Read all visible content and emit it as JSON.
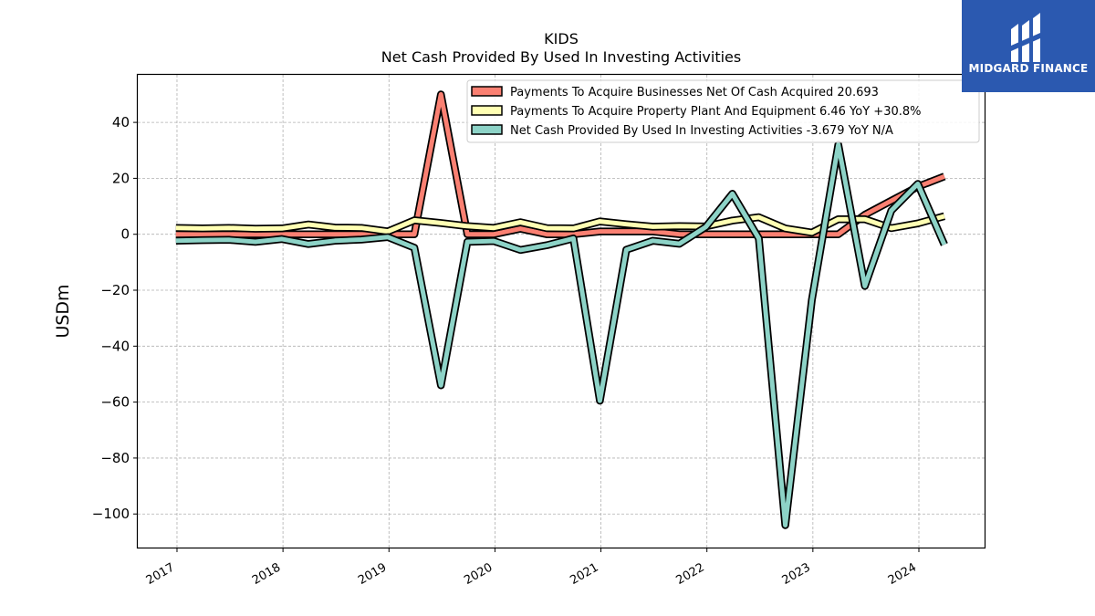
{
  "chart_data": {
    "type": "line",
    "title": "KIDS",
    "subtitle": "Net Cash Provided By Used In Investing Activities",
    "ylabel": "USDm",
    "xlabel": "",
    "ylim": [
      -112,
      57
    ],
    "xlim": [
      2016.63,
      2024.62
    ],
    "yticks": [
      40,
      20,
      0,
      -20,
      -40,
      -60,
      -80,
      -100
    ],
    "ytick_labels": [
      "40",
      "20",
      "0",
      "−20",
      "−40",
      "−60",
      "−80",
      "−100"
    ],
    "xticks": [
      2017,
      2018,
      2019,
      2020,
      2021,
      2022,
      2023,
      2024
    ],
    "xtick_labels": [
      "2017",
      "2018",
      "2019",
      "2020",
      "2021",
      "2022",
      "2023",
      "2024"
    ],
    "grid": true,
    "legend_position": "top-right",
    "x": [
      2016.99,
      2017.24,
      2017.49,
      2017.74,
      2017.99,
      2018.24,
      2018.49,
      2018.74,
      2018.99,
      2019.24,
      2019.49,
      2019.74,
      2019.99,
      2020.24,
      2020.49,
      2020.74,
      2020.99,
      2021.24,
      2021.49,
      2021.74,
      2021.99,
      2022.24,
      2022.49,
      2022.74,
      2022.99,
      2023.24,
      2023.49,
      2023.74,
      2023.99,
      2024.24
    ],
    "series": [
      {
        "name": "Payments To Acquire Businesses Net Of Cash Acquired",
        "legend_label": "Payments To Acquire Businesses Net Of Cash Acquired  20.693",
        "color": "#fa8072",
        "values": [
          0,
          0,
          0,
          0,
          0,
          0,
          0,
          0,
          0,
          0,
          50,
          0,
          0,
          2,
          0,
          0,
          1,
          1,
          1,
          0,
          0,
          0,
          0,
          0,
          0,
          0,
          7,
          12,
          17,
          20.693
        ]
      },
      {
        "name": "Payments To Acquire Property Plant And Equipment",
        "legend_label": "Payments To Acquire Property Plant And Equipment  6.46 YoY +30.8%",
        "color": "#ffffb3",
        "values": [
          2.3,
          2.1,
          2.3,
          2.0,
          2.1,
          3.5,
          2.4,
          2.3,
          1.0,
          5.0,
          4.0,
          2.9,
          2.3,
          4.3,
          2.2,
          2.1,
          4.6,
          3.6,
          2.7,
          2.9,
          2.8,
          4.9,
          6.1,
          2.1,
          0.6,
          5.4,
          5.4,
          2.2,
          3.9,
          6.46
        ]
      },
      {
        "name": "Net Cash Provided By Used In Investing Activities",
        "legend_label": "Net Cash Provided By Used In Investing Activities  -3.679 YoY N/A",
        "color": "#8dd3c7",
        "values": [
          -2.3,
          -2.1,
          -2.0,
          -2.7,
          -1.7,
          -3.5,
          -2.3,
          -1.9,
          -1.0,
          -4.8,
          -54,
          -2.7,
          -2.4,
          -5.6,
          -3.9,
          -1.5,
          -59.5,
          -5.5,
          -2.3,
          -3.4,
          2.6,
          14.5,
          -1.5,
          -104,
          -23.5,
          32,
          -18.5,
          8.5,
          18,
          -3.679
        ]
      }
    ]
  },
  "logo": {
    "text": "MIDGARD FINANCE",
    "color": "#2b59b0"
  }
}
